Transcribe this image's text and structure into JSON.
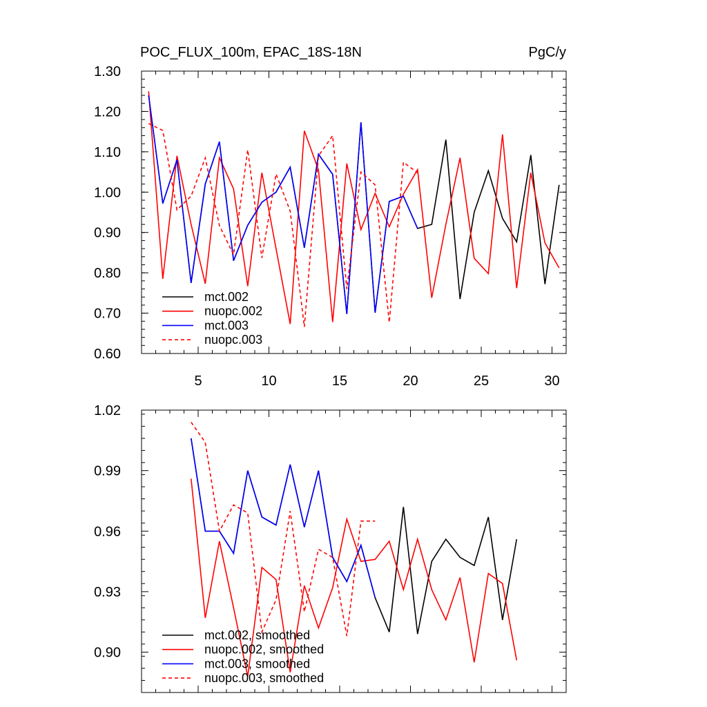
{
  "chart_data": [
    {
      "type": "line",
      "title": "POC_FLUX_100m, EPAC_18S-18N",
      "units": "PgC/y",
      "xlim": [
        1,
        31
      ],
      "ylim": [
        0.6,
        1.3
      ],
      "xticks": [
        5,
        10,
        15,
        20,
        25,
        30
      ],
      "xtick_labels": [
        "5",
        "10",
        "15",
        "20",
        "25",
        "30"
      ],
      "yticks": [
        0.6,
        0.7,
        0.8,
        0.9,
        1.0,
        1.1,
        1.2,
        1.3
      ],
      "ytick_labels": [
        "0.60",
        "0.70",
        "0.80",
        "0.90",
        "1.00",
        "1.10",
        "1.20",
        "1.30"
      ],
      "series": [
        {
          "name": "mct.002",
          "color": "#000000",
          "dash": false,
          "x": [
            1.5,
            2.5,
            3.5,
            4.5,
            5.5,
            6.5,
            7.5,
            8.5,
            9.5,
            10.5,
            11.5,
            12.5,
            13.5,
            14.5,
            15.5,
            16.5,
            17.5,
            18.5,
            19.5,
            20.5,
            21.5,
            22.5,
            23.5,
            24.5,
            25.5,
            26.5,
            27.5,
            28.5,
            29.5,
            30.5
          ],
          "values": [
            1.24,
            0.972,
            1.08,
            0.775,
            1.02,
            1.125,
            0.83,
            0.918,
            0.975,
            1.0,
            1.062,
            0.862,
            1.094,
            1.044,
            0.698,
            1.173,
            0.701,
            0.977,
            0.99,
            0.91,
            0.92,
            1.13,
            0.735,
            0.95,
            1.053,
            0.935,
            0.877,
            1.092,
            0.772,
            1.018
          ]
        },
        {
          "name": "nuopc.002",
          "color": "#ff0000",
          "dash": false,
          "x": [
            1.5,
            2.5,
            3.5,
            4.5,
            5.5,
            6.5,
            7.5,
            8.5,
            9.5,
            10.5,
            11.5,
            12.5,
            13.5,
            14.5,
            15.5,
            16.5,
            17.5,
            18.5,
            19.5,
            20.5,
            21.5,
            22.5,
            23.5,
            24.5,
            25.5,
            26.5,
            27.5,
            28.5,
            29.5,
            30.5
          ],
          "values": [
            1.25,
            0.785,
            1.09,
            0.92,
            0.773,
            1.085,
            1.008,
            0.767,
            1.048,
            0.86,
            0.673,
            1.152,
            1.055,
            0.678,
            1.071,
            0.907,
            0.997,
            0.914,
            0.995,
            1.056,
            0.738,
            0.92,
            1.085,
            0.836,
            0.798,
            1.143,
            0.762,
            1.048,
            0.874,
            0.812
          ]
        },
        {
          "name": "mct.003",
          "color": "#0000ff",
          "dash": false,
          "x": [
            1.5,
            2.5,
            3.5,
            4.5,
            5.5,
            6.5,
            7.5,
            8.5,
            9.5,
            10.5,
            11.5,
            12.5,
            13.5,
            14.5,
            15.5,
            16.5,
            17.5,
            18.5,
            19.5,
            20.5
          ],
          "values": [
            1.24,
            0.972,
            1.08,
            0.775,
            1.02,
            1.125,
            0.83,
            0.918,
            0.975,
            1.0,
            1.062,
            0.862,
            1.094,
            1.044,
            0.698,
            1.173,
            0.701,
            0.977,
            0.99,
            0.91
          ]
        },
        {
          "name": "nuopc.003",
          "color": "#ff0000",
          "dash": true,
          "x": [
            1.5,
            2.5,
            3.5,
            4.5,
            5.5,
            6.5,
            7.5,
            8.5,
            9.5,
            10.5,
            11.5,
            12.5,
            13.5,
            14.5,
            15.5,
            16.5,
            17.5,
            18.5,
            19.5,
            20.5
          ],
          "values": [
            1.17,
            1.153,
            0.956,
            0.99,
            1.085,
            0.917,
            0.845,
            1.105,
            0.837,
            1.045,
            0.953,
            0.666,
            1.09,
            1.14,
            0.76,
            1.05,
            1.018,
            0.677,
            1.074,
            1.048
          ]
        }
      ]
    },
    {
      "type": "line",
      "xlim": [
        1,
        31
      ],
      "ylim": [
        0.88,
        1.02
      ],
      "xticks": [
        5,
        10,
        15,
        20,
        25,
        30
      ],
      "yticks": [
        0.9,
        0.93,
        0.96,
        0.99,
        1.02
      ],
      "ytick_labels": [
        "0.90",
        "0.93",
        "0.96",
        "0.99",
        "1.02"
      ],
      "series": [
        {
          "name": "mct.002, smoothed",
          "color": "#000000",
          "dash": false,
          "x": [
            4.5,
            5.5,
            6.5,
            7.5,
            8.5,
            9.5,
            10.5,
            11.5,
            12.5,
            13.5,
            14.5,
            15.5,
            16.5,
            17.5,
            18.5,
            19.5,
            20.5,
            21.5,
            22.5,
            23.5,
            24.5,
            25.5,
            26.5,
            27.5
          ],
          "values": [
            1.006,
            0.96,
            0.96,
            0.949,
            0.99,
            0.967,
            0.963,
            0.993,
            0.962,
            0.99,
            0.947,
            0.935,
            0.953,
            0.927,
            0.91,
            0.972,
            0.909,
            0.945,
            0.956,
            0.947,
            0.943,
            0.967,
            0.916,
            0.956
          ]
        },
        {
          "name": "nuopc.002, smoothed",
          "color": "#ff0000",
          "dash": false,
          "x": [
            4.5,
            5.5,
            6.5,
            7.5,
            8.5,
            9.5,
            10.5,
            11.5,
            12.5,
            13.5,
            14.5,
            15.5,
            16.5,
            17.5,
            18.5,
            19.5,
            20.5,
            21.5,
            22.5,
            23.5,
            24.5,
            25.5,
            26.5,
            27.5
          ],
          "values": [
            0.986,
            0.917,
            0.955,
            0.922,
            0.888,
            0.942,
            0.936,
            0.89,
            0.933,
            0.912,
            0.932,
            0.966,
            0.945,
            0.946,
            0.955,
            0.931,
            0.956,
            0.931,
            0.916,
            0.937,
            0.895,
            0.939,
            0.934,
            0.896
          ]
        },
        {
          "name": "mct.003, smoothed",
          "color": "#0000ff",
          "dash": false,
          "x": [
            4.5,
            5.5,
            6.5,
            7.5,
            8.5,
            9.5,
            10.5,
            11.5,
            12.5,
            13.5,
            14.5,
            15.5,
            16.5,
            17.5
          ],
          "values": [
            1.006,
            0.96,
            0.96,
            0.949,
            0.99,
            0.967,
            0.963,
            0.993,
            0.962,
            0.99,
            0.947,
            0.935,
            0.953,
            0.927
          ]
        },
        {
          "name": "nuopc.003, smoothed",
          "color": "#ff0000",
          "dash": true,
          "x": [
            4.5,
            5.5,
            6.5,
            7.5,
            8.5,
            9.5,
            10.5,
            11.5,
            12.5,
            13.5,
            14.5,
            15.5,
            16.5,
            17.5
          ],
          "values": [
            1.014,
            1.004,
            0.96,
            0.973,
            0.969,
            0.91,
            0.926,
            0.97,
            0.92,
            0.951,
            0.947,
            0.908,
            0.965,
            0.965
          ]
        }
      ]
    }
  ]
}
